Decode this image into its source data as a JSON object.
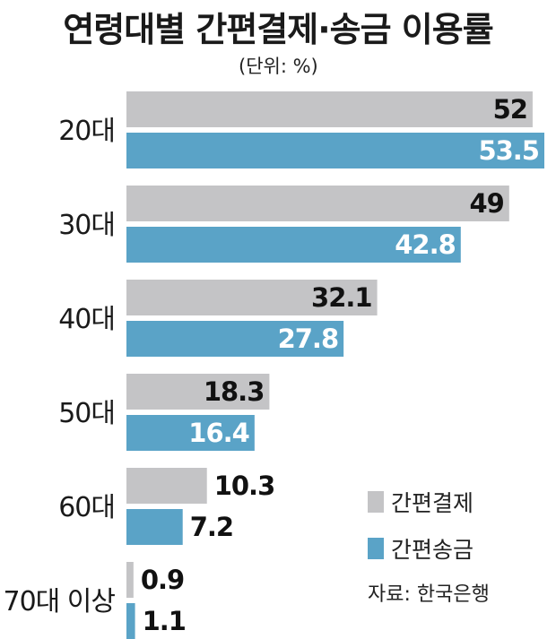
{
  "title": "연령대별 간편결제·송금 이용률",
  "unit": "(단위: %)",
  "source": "자료: 한국은행",
  "colors": {
    "payment": "#c4c4c6",
    "transfer": "#5aa3c7"
  },
  "chart_data": {
    "type": "bar",
    "orientation": "horizontal",
    "title": "연령대별 간편결제·송금 이용률",
    "unit": "(단위: %)",
    "categories": [
      "20대",
      "30대",
      "40대",
      "50대",
      "60대",
      "70대 이상"
    ],
    "series": [
      {
        "name": "간편결제",
        "color": "#c4c4c6",
        "values": [
          52,
          49,
          32.1,
          18.3,
          10.3,
          0.9
        ]
      },
      {
        "name": "간편송금",
        "color": "#5aa3c7",
        "values": [
          53.5,
          42.8,
          27.8,
          16.4,
          7.2,
          1.1
        ]
      }
    ],
    "xlim": [
      0,
      53.5
    ],
    "legend_position": "bottom-right",
    "grid": false,
    "source": "자료: 한국은행"
  }
}
